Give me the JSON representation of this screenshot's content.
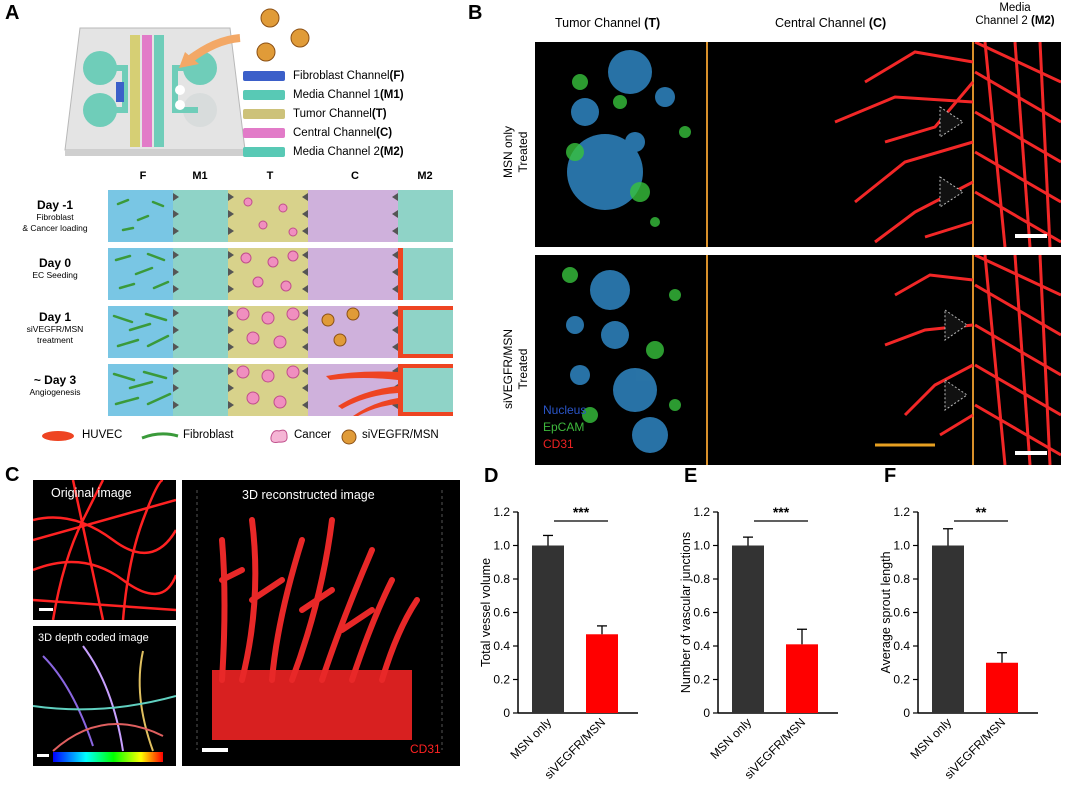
{
  "panel_a": {
    "letter": "A",
    "legend": [
      {
        "label": "Fibroblast Channel ",
        "code": "(F)",
        "color": "#3b5fc9"
      },
      {
        "label": "Media Channel 1 ",
        "code": "(M1)",
        "color": "#58c9b5"
      },
      {
        "label": "Tumor Channel ",
        "code": "(T)",
        "color": "#cdc27a"
      },
      {
        "label": "Central Channel ",
        "code": "(C)",
        "color": "#e27bc8"
      },
      {
        "label": "Media Channel 2 ",
        "code": "(M2)",
        "color": "#58c9b5"
      }
    ],
    "columns": [
      "F",
      "M1",
      "T",
      "C",
      "M2"
    ],
    "days": [
      {
        "day": "Day -1",
        "desc1": "Fibroblast",
        "desc2": "& Cancer loading"
      },
      {
        "day": "Day 0",
        "desc1": "EC Seeding",
        "desc2": ""
      },
      {
        "day": "Day 1",
        "desc1": "siVEGFR/MSN",
        "desc2": "treatment"
      },
      {
        "day": "~ Day 3",
        "desc1": "Angiogenesis",
        "desc2": ""
      }
    ],
    "key": [
      "HUVEC",
      "Fibroblast",
      "Cancer",
      "siVEGFR/MSN"
    ],
    "colors": {
      "fibro_bg": "#79c6e4",
      "media": "#8fd3c7",
      "tumor": "#d8d28b",
      "central": "#cfb1dc",
      "red": "#ee3322"
    }
  },
  "panel_b": {
    "letter": "B",
    "headers": [
      {
        "text": "Tumor Channel ",
        "code": "(T)"
      },
      {
        "text": "Central Channel ",
        "code": "(C)"
      },
      {
        "text": "Media",
        "text2": "Channel 2 ",
        "code": "(M2)"
      }
    ],
    "rows": [
      {
        "line1": "MSN only",
        "line2": "Treated"
      },
      {
        "line1": "siVEGFR/MSN",
        "line2": "Treated"
      }
    ],
    "stain_labels": [
      "Nucleus",
      "EpCAM",
      "CD31"
    ],
    "stain_colors": [
      "#2a55c8",
      "#3eb83c",
      "#ee2222"
    ]
  },
  "panel_c": {
    "letter": "C",
    "original_label": "Original image",
    "depth_label": "3D depth coded image",
    "reconstructed_label": "3D reconstructed image",
    "cd31_label": "CD31"
  },
  "chart_data": [
    {
      "letter": "D",
      "type": "bar",
      "categories": [
        "MSN only",
        "siVEGFR/MSN"
      ],
      "values": [
        1.0,
        0.47
      ],
      "errors": [
        0.06,
        0.05
      ],
      "colors": [
        "#333333",
        "#ff0000"
      ],
      "ylabel": "Total vessel volume",
      "ylim": [
        0,
        1.2
      ],
      "yticks": [
        "0",
        "0.2",
        "0.4",
        "0.6",
        "0.8",
        "1.0",
        "1.2"
      ],
      "significance": "***"
    },
    {
      "letter": "E",
      "type": "bar",
      "categories": [
        "MSN only",
        "siVEGFR/MSN"
      ],
      "values": [
        1.0,
        0.41
      ],
      "errors": [
        0.05,
        0.09
      ],
      "colors": [
        "#333333",
        "#ff0000"
      ],
      "ylabel": "Number of vascular junctions",
      "ylim": [
        0,
        1.2
      ],
      "yticks": [
        "0",
        "0.2",
        "0.4",
        "0.6",
        "0.8",
        "1.0",
        "1.2"
      ],
      "significance": "***"
    },
    {
      "letter": "F",
      "type": "bar",
      "categories": [
        "MSN only",
        "siVEGFR/MSN"
      ],
      "values": [
        1.0,
        0.3
      ],
      "errors": [
        0.1,
        0.06
      ],
      "colors": [
        "#333333",
        "#ff0000"
      ],
      "ylabel": "Average sprout length",
      "ylim": [
        0,
        1.2
      ],
      "yticks": [
        "0",
        "0.2",
        "0.4",
        "0.6",
        "0.8",
        "1.0",
        "1.2"
      ],
      "significance": "**"
    }
  ]
}
